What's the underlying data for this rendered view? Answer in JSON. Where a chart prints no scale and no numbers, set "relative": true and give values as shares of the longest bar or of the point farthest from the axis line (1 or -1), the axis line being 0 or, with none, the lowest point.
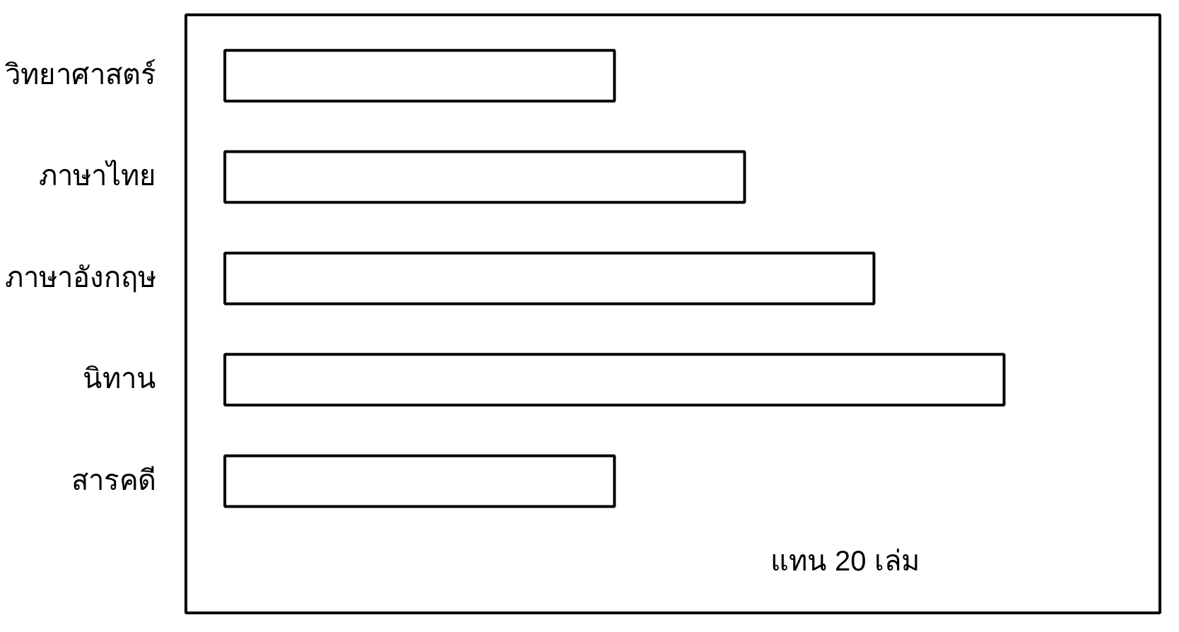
{
  "chart_data": {
    "type": "bar",
    "orientation": "horizontal",
    "relative": true,
    "categories": [
      "วิทยาศาสตร์",
      "ภาษาไทย",
      "ภาษาอังกฤษ",
      "นิทาน",
      "สารคดี"
    ],
    "values": [
      0.5,
      0.667,
      0.833,
      1,
      0.5
    ],
    "color": "#000000",
    "annotations": [
      "แทน 20 เล่ม"
    ]
  }
}
